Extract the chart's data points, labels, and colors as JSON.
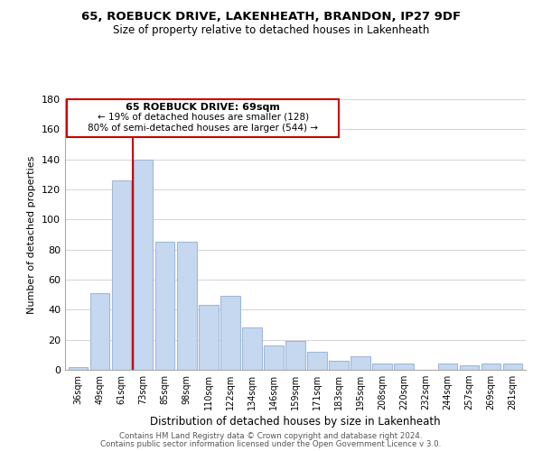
{
  "title1": "65, ROEBUCK DRIVE, LAKENHEATH, BRANDON, IP27 9DF",
  "title2": "Size of property relative to detached houses in Lakenheath",
  "xlabel": "Distribution of detached houses by size in Lakenheath",
  "ylabel": "Number of detached properties",
  "bar_labels": [
    "36sqm",
    "49sqm",
    "61sqm",
    "73sqm",
    "85sqm",
    "98sqm",
    "110sqm",
    "122sqm",
    "134sqm",
    "146sqm",
    "159sqm",
    "171sqm",
    "183sqm",
    "195sqm",
    "208sqm",
    "220sqm",
    "232sqm",
    "244sqm",
    "257sqm",
    "269sqm",
    "281sqm"
  ],
  "bar_values": [
    2,
    51,
    126,
    140,
    85,
    85,
    43,
    49,
    28,
    16,
    19,
    12,
    6,
    9,
    4,
    4,
    0,
    4,
    3,
    4,
    4
  ],
  "bar_color": "#c5d8f0",
  "bar_edge_color": "#a0b8d8",
  "highlight_line_color": "#cc0000",
  "ylim": [
    0,
    180
  ],
  "yticks": [
    0,
    20,
    40,
    60,
    80,
    100,
    120,
    140,
    160,
    180
  ],
  "annotation_title": "65 ROEBUCK DRIVE: 69sqm",
  "annotation_line1": "← 19% of detached houses are smaller (128)",
  "annotation_line2": "80% of semi-detached houses are larger (544) →",
  "annotation_box_color": "#ffffff",
  "annotation_box_edge": "#cc0000",
  "footer1": "Contains HM Land Registry data © Crown copyright and database right 2024.",
  "footer2": "Contains public sector information licensed under the Open Government Licence v 3.0.",
  "background_color": "#ffffff",
  "grid_color": "#cccccc"
}
